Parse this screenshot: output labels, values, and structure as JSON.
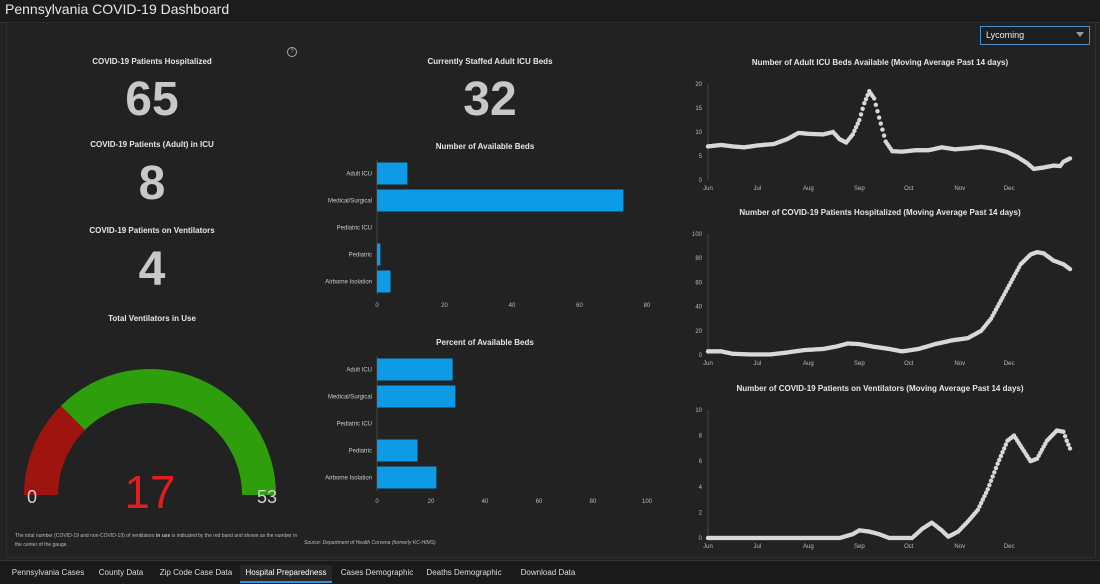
{
  "app_title": "Pennsylvania COVID-19 Dashboard",
  "county_select": {
    "value": "Lycoming"
  },
  "metrics": {
    "hospitalized": {
      "label": "COVID-19 Patients Hospitalized",
      "value": "65"
    },
    "icu": {
      "label": "COVID-19 Patients (Adult) in ICU",
      "value": "8"
    },
    "ventilators": {
      "label": "COVID-19 Patients on Ventilators",
      "value": "4"
    },
    "staffed_icu": {
      "label": "Currently Staffed Adult ICU Beds",
      "value": "32"
    }
  },
  "gauge": {
    "title": "Total Ventilators in Use",
    "min": "0",
    "max": "53",
    "value": "17",
    "value_num": 17,
    "max_num": 53,
    "red_fraction": 0.25,
    "colors": {
      "red": "#a0140f",
      "green": "#2f9e0c",
      "value_text": "#e01e1e"
    },
    "note_prefix": "The total number (COVID-19 and non-COVID-19) of ventilators ",
    "note_bold": "in use",
    "note_suffix": " is indicated by the red band and shown as the number in the center of the gauge."
  },
  "source": "Source: Department of Health Corvena (formerly KC-HIMS)",
  "help_icon": "help-icon",
  "chart_data": [
    {
      "type": "bar",
      "orientation": "horizontal",
      "title": "Number of Available Beds",
      "categories": [
        "Adult ICU",
        "Medical/Surgical",
        "Pediatric ICU",
        "Pediatric",
        "Airborne Isolation"
      ],
      "values": [
        9,
        73,
        0,
        1,
        4
      ],
      "xlim": [
        0,
        80
      ],
      "xticks": [
        "0",
        "20",
        "40",
        "60",
        "80"
      ],
      "color": "#0d9be6"
    },
    {
      "type": "bar",
      "orientation": "horizontal",
      "title": "Percent of Available Beds",
      "categories": [
        "Adult ICU",
        "Medical/Surgical",
        "Pediatric ICU",
        "Pediatric",
        "Airborne Isolation"
      ],
      "values": [
        28,
        29,
        0,
        15,
        22
      ],
      "xlim": [
        0,
        100
      ],
      "xticks": [
        "0",
        "20",
        "40",
        "60",
        "80",
        "100"
      ],
      "color": "#0d9be6"
    },
    {
      "type": "scatter",
      "title": "Number of Adult ICU Beds Available (Moving Average Past 14 days)",
      "xticks": [
        "Jun",
        "Jul",
        "Aug",
        "Sep",
        "Oct",
        "Nov",
        "Dec"
      ],
      "ylim": [
        0,
        20
      ],
      "yticks": [
        "0",
        "5",
        "10",
        "15",
        "20"
      ],
      "keypoints": [
        [
          0,
          7
        ],
        [
          8,
          7.3
        ],
        [
          15,
          7
        ],
        [
          22,
          6.8
        ],
        [
          30,
          7.2
        ],
        [
          40,
          7.5
        ],
        [
          48,
          8.5
        ],
        [
          55,
          9.8
        ],
        [
          62,
          9.6
        ],
        [
          70,
          9.5
        ],
        [
          76,
          10
        ],
        [
          80,
          8.5
        ],
        [
          84,
          7.8
        ],
        [
          88,
          9.5
        ],
        [
          92,
          12.5
        ],
        [
          95,
          16
        ],
        [
          98,
          18.5
        ],
        [
          101,
          17
        ],
        [
          104,
          13
        ],
        [
          108,
          8
        ],
        [
          112,
          6
        ],
        [
          118,
          5.9
        ],
        [
          126,
          6.2
        ],
        [
          134,
          6.2
        ],
        [
          142,
          6.8
        ],
        [
          150,
          6.4
        ],
        [
          158,
          6.6
        ],
        [
          166,
          6.9
        ],
        [
          174,
          6.5
        ],
        [
          182,
          5.8
        ],
        [
          188,
          4.8
        ],
        [
          194,
          3.5
        ],
        [
          198,
          2.3
        ],
        [
          204,
          2.6
        ],
        [
          210,
          3
        ],
        [
          214,
          2.9
        ],
        [
          216,
          3.8
        ],
        [
          220,
          4.5
        ]
      ],
      "color": "#d8d8d8"
    },
    {
      "type": "scatter",
      "title": "Number of COVID-19 Patients Hospitalized (Moving Average Past 14 days)",
      "xticks": [
        "Jun",
        "Jul",
        "Aug",
        "Sep",
        "Oct",
        "Nov",
        "Dec"
      ],
      "ylim": [
        0,
        100
      ],
      "yticks": [
        "0",
        "20",
        "40",
        "60",
        "80",
        "100"
      ],
      "keypoints": [
        [
          0,
          3
        ],
        [
          8,
          3
        ],
        [
          15,
          1
        ],
        [
          25,
          0.5
        ],
        [
          38,
          0.5
        ],
        [
          48,
          2
        ],
        [
          58,
          4
        ],
        [
          70,
          5
        ],
        [
          78,
          7
        ],
        [
          85,
          9.5
        ],
        [
          92,
          9
        ],
        [
          100,
          7
        ],
        [
          110,
          5
        ],
        [
          118,
          3
        ],
        [
          128,
          5
        ],
        [
          138,
          9
        ],
        [
          148,
          12
        ],
        [
          158,
          14
        ],
        [
          166,
          20
        ],
        [
          172,
          30
        ],
        [
          178,
          45
        ],
        [
          184,
          60
        ],
        [
          190,
          75
        ],
        [
          196,
          83
        ],
        [
          200,
          85
        ],
        [
          204,
          84
        ],
        [
          210,
          78
        ],
        [
          216,
          75
        ],
        [
          220,
          71
        ]
      ],
      "color": "#d8d8d8"
    },
    {
      "type": "scatter",
      "title": "Number of COVID-19 Patients on Ventilators (Moving Average Past 14 days)",
      "xticks": [
        "Jun",
        "Jul",
        "Aug",
        "Sep",
        "Oct",
        "Nov",
        "Dec"
      ],
      "ylim": [
        0,
        10
      ],
      "yticks": [
        "0",
        "2",
        "4",
        "6",
        "8",
        "10"
      ],
      "keypoints": [
        [
          0,
          0
        ],
        [
          30,
          0
        ],
        [
          60,
          0
        ],
        [
          80,
          0
        ],
        [
          88,
          0.3
        ],
        [
          92,
          0.6
        ],
        [
          98,
          0.5
        ],
        [
          104,
          0.3
        ],
        [
          110,
          0
        ],
        [
          118,
          0
        ],
        [
          124,
          0
        ],
        [
          130,
          0.7
        ],
        [
          136,
          1.2
        ],
        [
          142,
          0.6
        ],
        [
          146,
          0.1
        ],
        [
          152,
          0.5
        ],
        [
          158,
          1.3
        ],
        [
          164,
          2.2
        ],
        [
          170,
          3.8
        ],
        [
          176,
          5.8
        ],
        [
          182,
          7.6
        ],
        [
          186,
          8
        ],
        [
          190,
          7.2
        ],
        [
          196,
          6
        ],
        [
          200,
          6.2
        ],
        [
          206,
          7.6
        ],
        [
          212,
          8.4
        ],
        [
          216,
          8.3
        ],
        [
          218,
          7.6
        ],
        [
          220,
          7
        ]
      ],
      "color": "#d8d8d8"
    }
  ],
  "tabs": [
    {
      "label": "Pennsylvania Cases"
    },
    {
      "label": "County Data"
    },
    {
      "label": "Zip Code Case Data"
    },
    {
      "label": "Hospital Preparedness",
      "active": true
    },
    {
      "label": "Cases Demographic"
    },
    {
      "label": "Deaths Demographic"
    },
    {
      "label": "Download Data"
    }
  ]
}
